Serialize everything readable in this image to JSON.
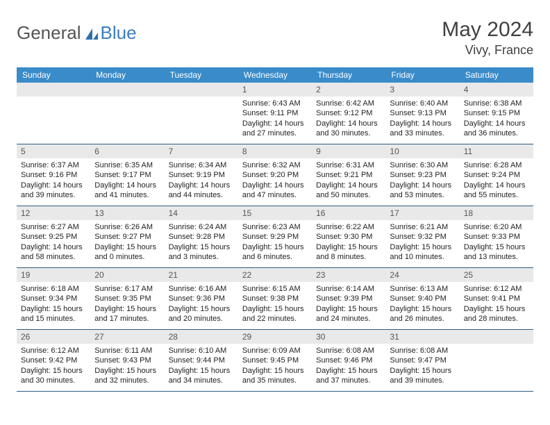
{
  "logo": {
    "text1": "General",
    "text2": "Blue"
  },
  "title": "May 2024",
  "location": "Vivy, France",
  "colors": {
    "header_bg": "#3a8bc9",
    "header_text": "#ffffff",
    "daynum_bg": "#e9e9e9",
    "week_border": "#2f5b7f",
    "logo_blue": "#3a7fbf",
    "text": "#333333"
  },
  "dow": [
    "Sunday",
    "Monday",
    "Tuesday",
    "Wednesday",
    "Thursday",
    "Friday",
    "Saturday"
  ],
  "weeks": [
    [
      {
        "n": "",
        "sr": "",
        "ss": "",
        "dl": "",
        "empty": true
      },
      {
        "n": "",
        "sr": "",
        "ss": "",
        "dl": "",
        "empty": true
      },
      {
        "n": "",
        "sr": "",
        "ss": "",
        "dl": "",
        "empty": true
      },
      {
        "n": "1",
        "sr": "Sunrise: 6:43 AM",
        "ss": "Sunset: 9:11 PM",
        "dl": "Daylight: 14 hours and 27 minutes."
      },
      {
        "n": "2",
        "sr": "Sunrise: 6:42 AM",
        "ss": "Sunset: 9:12 PM",
        "dl": "Daylight: 14 hours and 30 minutes."
      },
      {
        "n": "3",
        "sr": "Sunrise: 6:40 AM",
        "ss": "Sunset: 9:13 PM",
        "dl": "Daylight: 14 hours and 33 minutes."
      },
      {
        "n": "4",
        "sr": "Sunrise: 6:38 AM",
        "ss": "Sunset: 9:15 PM",
        "dl": "Daylight: 14 hours and 36 minutes."
      }
    ],
    [
      {
        "n": "5",
        "sr": "Sunrise: 6:37 AM",
        "ss": "Sunset: 9:16 PM",
        "dl": "Daylight: 14 hours and 39 minutes."
      },
      {
        "n": "6",
        "sr": "Sunrise: 6:35 AM",
        "ss": "Sunset: 9:17 PM",
        "dl": "Daylight: 14 hours and 41 minutes."
      },
      {
        "n": "7",
        "sr": "Sunrise: 6:34 AM",
        "ss": "Sunset: 9:19 PM",
        "dl": "Daylight: 14 hours and 44 minutes."
      },
      {
        "n": "8",
        "sr": "Sunrise: 6:32 AM",
        "ss": "Sunset: 9:20 PM",
        "dl": "Daylight: 14 hours and 47 minutes."
      },
      {
        "n": "9",
        "sr": "Sunrise: 6:31 AM",
        "ss": "Sunset: 9:21 PM",
        "dl": "Daylight: 14 hours and 50 minutes."
      },
      {
        "n": "10",
        "sr": "Sunrise: 6:30 AM",
        "ss": "Sunset: 9:23 PM",
        "dl": "Daylight: 14 hours and 53 minutes."
      },
      {
        "n": "11",
        "sr": "Sunrise: 6:28 AM",
        "ss": "Sunset: 9:24 PM",
        "dl": "Daylight: 14 hours and 55 minutes."
      }
    ],
    [
      {
        "n": "12",
        "sr": "Sunrise: 6:27 AM",
        "ss": "Sunset: 9:25 PM",
        "dl": "Daylight: 14 hours and 58 minutes."
      },
      {
        "n": "13",
        "sr": "Sunrise: 6:26 AM",
        "ss": "Sunset: 9:27 PM",
        "dl": "Daylight: 15 hours and 0 minutes."
      },
      {
        "n": "14",
        "sr": "Sunrise: 6:24 AM",
        "ss": "Sunset: 9:28 PM",
        "dl": "Daylight: 15 hours and 3 minutes."
      },
      {
        "n": "15",
        "sr": "Sunrise: 6:23 AM",
        "ss": "Sunset: 9:29 PM",
        "dl": "Daylight: 15 hours and 6 minutes."
      },
      {
        "n": "16",
        "sr": "Sunrise: 6:22 AM",
        "ss": "Sunset: 9:30 PM",
        "dl": "Daylight: 15 hours and 8 minutes."
      },
      {
        "n": "17",
        "sr": "Sunrise: 6:21 AM",
        "ss": "Sunset: 9:32 PM",
        "dl": "Daylight: 15 hours and 10 minutes."
      },
      {
        "n": "18",
        "sr": "Sunrise: 6:20 AM",
        "ss": "Sunset: 9:33 PM",
        "dl": "Daylight: 15 hours and 13 minutes."
      }
    ],
    [
      {
        "n": "19",
        "sr": "Sunrise: 6:18 AM",
        "ss": "Sunset: 9:34 PM",
        "dl": "Daylight: 15 hours and 15 minutes."
      },
      {
        "n": "20",
        "sr": "Sunrise: 6:17 AM",
        "ss": "Sunset: 9:35 PM",
        "dl": "Daylight: 15 hours and 17 minutes."
      },
      {
        "n": "21",
        "sr": "Sunrise: 6:16 AM",
        "ss": "Sunset: 9:36 PM",
        "dl": "Daylight: 15 hours and 20 minutes."
      },
      {
        "n": "22",
        "sr": "Sunrise: 6:15 AM",
        "ss": "Sunset: 9:38 PM",
        "dl": "Daylight: 15 hours and 22 minutes."
      },
      {
        "n": "23",
        "sr": "Sunrise: 6:14 AM",
        "ss": "Sunset: 9:39 PM",
        "dl": "Daylight: 15 hours and 24 minutes."
      },
      {
        "n": "24",
        "sr": "Sunrise: 6:13 AM",
        "ss": "Sunset: 9:40 PM",
        "dl": "Daylight: 15 hours and 26 minutes."
      },
      {
        "n": "25",
        "sr": "Sunrise: 6:12 AM",
        "ss": "Sunset: 9:41 PM",
        "dl": "Daylight: 15 hours and 28 minutes."
      }
    ],
    [
      {
        "n": "26",
        "sr": "Sunrise: 6:12 AM",
        "ss": "Sunset: 9:42 PM",
        "dl": "Daylight: 15 hours and 30 minutes."
      },
      {
        "n": "27",
        "sr": "Sunrise: 6:11 AM",
        "ss": "Sunset: 9:43 PM",
        "dl": "Daylight: 15 hours and 32 minutes."
      },
      {
        "n": "28",
        "sr": "Sunrise: 6:10 AM",
        "ss": "Sunset: 9:44 PM",
        "dl": "Daylight: 15 hours and 34 minutes."
      },
      {
        "n": "29",
        "sr": "Sunrise: 6:09 AM",
        "ss": "Sunset: 9:45 PM",
        "dl": "Daylight: 15 hours and 35 minutes."
      },
      {
        "n": "30",
        "sr": "Sunrise: 6:08 AM",
        "ss": "Sunset: 9:46 PM",
        "dl": "Daylight: 15 hours and 37 minutes."
      },
      {
        "n": "31",
        "sr": "Sunrise: 6:08 AM",
        "ss": "Sunset: 9:47 PM",
        "dl": "Daylight: 15 hours and 39 minutes."
      },
      {
        "n": "",
        "sr": "",
        "ss": "",
        "dl": "",
        "empty": true
      }
    ]
  ]
}
